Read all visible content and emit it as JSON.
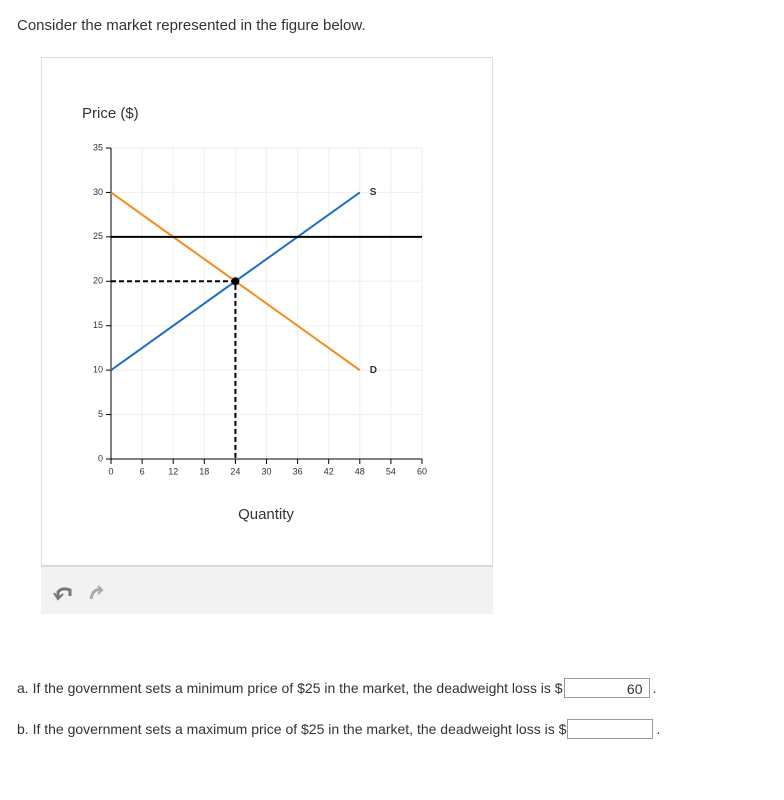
{
  "header": {
    "prompt": "Consider the market represented in the figure below."
  },
  "chart_data": {
    "type": "line",
    "ylabel": "Price ($)",
    "xlabel": "Quantity",
    "xlim": [
      0,
      60
    ],
    "xticks": [
      0,
      6,
      12,
      18,
      24,
      30,
      36,
      42,
      48,
      54,
      60
    ],
    "ylim": [
      0,
      35
    ],
    "yticks": [
      0,
      5,
      10,
      15,
      20,
      25,
      30,
      35
    ],
    "grid": true,
    "series": [
      {
        "name": "S",
        "color": "#1f6fc5",
        "x": [
          0,
          48
        ],
        "values": [
          10,
          30
        ]
      },
      {
        "name": "D",
        "color": "#f28c1c",
        "x": [
          0,
          48
        ],
        "values": [
          30,
          10
        ]
      },
      {
        "color": "#000000",
        "x": [
          0,
          60
        ],
        "values": [
          25,
          25
        ]
      },
      {
        "color": "#000000",
        "dashed": true,
        "x": [
          0,
          24,
          24
        ],
        "values": [
          20,
          20,
          0
        ]
      }
    ],
    "points": [
      {
        "x": 24,
        "y": 20,
        "color": "#000000"
      }
    ]
  },
  "questions": [
    {
      "text": "a. If the government sets a minimum price of $25 in the market, the deadweight loss is $",
      "answer": "60",
      "suffix": "."
    },
    {
      "text": "b. If the government sets a maximum price of $25 in the market, the deadweight loss is $",
      "suffix": "."
    }
  ]
}
